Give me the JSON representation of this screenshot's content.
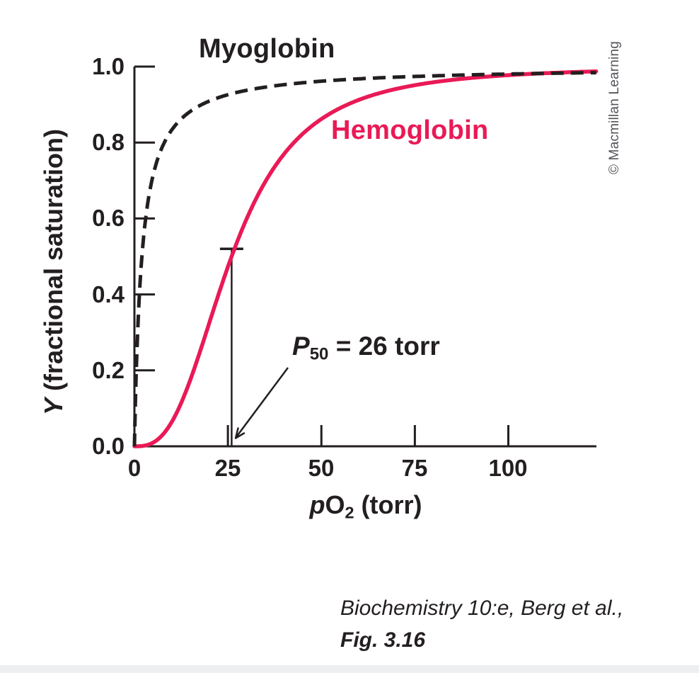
{
  "figure": {
    "watermark": "© Macmillan Learning",
    "caption_line1": "Biochemistry 10:e, Berg et al.,",
    "caption_line2": "Fig. 3.16"
  },
  "chart_data": {
    "type": "line",
    "title": "",
    "xlabel": "pO2 (torr)",
    "xlabel_parts": {
      "p": "p",
      "O": "O",
      "sub": "2",
      "rest": " (torr)"
    },
    "ylabel": "Y (fractional saturation)",
    "ylabel_parts": {
      "symbol": "Y",
      "rest": " (fractional saturation)"
    },
    "xlim": [
      0,
      123.6
    ],
    "ylim": [
      0,
      1.0
    ],
    "grid": false,
    "legend_position": "inline-labels",
    "xticks": [
      0,
      25,
      50,
      75,
      100
    ],
    "xtick_labels": [
      "0",
      "25",
      "50",
      "75",
      "100"
    ],
    "yticks": [
      0,
      0.2,
      0.4,
      0.6,
      0.8,
      1.0
    ],
    "ytick_labels": [
      "0.0",
      "0.2",
      "0.4",
      "0.6",
      "0.8",
      "1.0"
    ],
    "series": [
      {
        "name": "Hemoglobin",
        "style": "solid",
        "color": "#e91a56",
        "model": {
          "type": "hill",
          "p50": 26,
          "n": 2.8
        },
        "points": [
          [
            0,
            0
          ],
          [
            5,
            0.01
          ],
          [
            10,
            0.064
          ],
          [
            15,
            0.176
          ],
          [
            20,
            0.324
          ],
          [
            26,
            0.5
          ],
          [
            30,
            0.6
          ],
          [
            40,
            0.77
          ],
          [
            50,
            0.862
          ],
          [
            60,
            0.912
          ],
          [
            75,
            0.951
          ],
          [
            100,
            0.978
          ],
          [
            123,
            0.987
          ]
        ]
      },
      {
        "name": "Myoglobin",
        "style": "dashed",
        "color": "#231f20",
        "model": {
          "type": "hill",
          "p50": 2,
          "n": 1
        },
        "points": [
          [
            0,
            0
          ],
          [
            1,
            0.333
          ],
          [
            2,
            0.5
          ],
          [
            3,
            0.6
          ],
          [
            5,
            0.714
          ],
          [
            10,
            0.833
          ],
          [
            20,
            0.909
          ],
          [
            26,
            0.929
          ],
          [
            50,
            0.962
          ],
          [
            75,
            0.974
          ],
          [
            100,
            0.98
          ],
          [
            123,
            0.984
          ]
        ]
      }
    ],
    "annotation": {
      "text": "P50 = 26 torr",
      "label_parts": {
        "symbol": "P",
        "sub": "50",
        "rest": " = 26 torr"
      },
      "p50_value_torr": 26,
      "marker_top_Y": 0.52
    }
  }
}
